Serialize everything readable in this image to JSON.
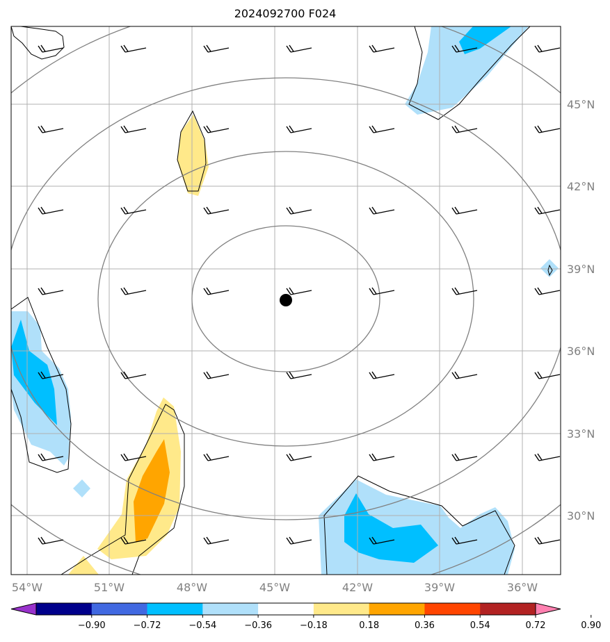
{
  "title": "2024092700 F024",
  "map": {
    "lon_range": [
      -55,
      -35
    ],
    "lat_range": [
      27.5,
      47.5
    ],
    "center_marker": {
      "lon": -45.4,
      "lat": 37.8
    },
    "lon_labels": [
      {
        "lon": -54,
        "label": "54°W"
      },
      {
        "lon": -51,
        "label": "51°W"
      },
      {
        "lon": -48,
        "label": "48°W"
      },
      {
        "lon": -45,
        "label": "45°W"
      },
      {
        "lon": -42,
        "label": "42°W"
      },
      {
        "lon": -39,
        "label": "39°W"
      },
      {
        "lon": -36,
        "label": "36°W"
      }
    ],
    "lat_labels": [
      {
        "lat": 45,
        "label": "45°N"
      },
      {
        "lat": 42,
        "label": "42°N"
      },
      {
        "lat": 39,
        "label": "39°N"
      },
      {
        "lat": 36,
        "label": "36°N"
      },
      {
        "lat": 33,
        "label": "33°N"
      },
      {
        "lat": 30,
        "label": "30°N"
      }
    ],
    "range_rings": [
      "ring-1",
      "ring-2",
      "ring-3",
      "ring-4"
    ],
    "wind_barbs": {
      "lons": [
        -54,
        -51,
        -48,
        -45,
        -42,
        -39,
        -36
      ],
      "lats": [
        47,
        44,
        41,
        38,
        35,
        32,
        29
      ]
    }
  },
  "colorbar": {
    "ticks": [
      "−0.90",
      "−0.72",
      "−0.54",
      "−0.36",
      "−0.18",
      "0.18",
      "0.36",
      "0.54",
      "0.72",
      "0.90"
    ],
    "colors": [
      "#9932cc",
      "#00008b",
      "#4169e1",
      "#00bfff",
      "#b0e0fa",
      "#ffffff",
      "#ffe98a",
      "#ffa500",
      "#ff4500",
      "#b22222",
      "#ff80b0"
    ]
  }
}
